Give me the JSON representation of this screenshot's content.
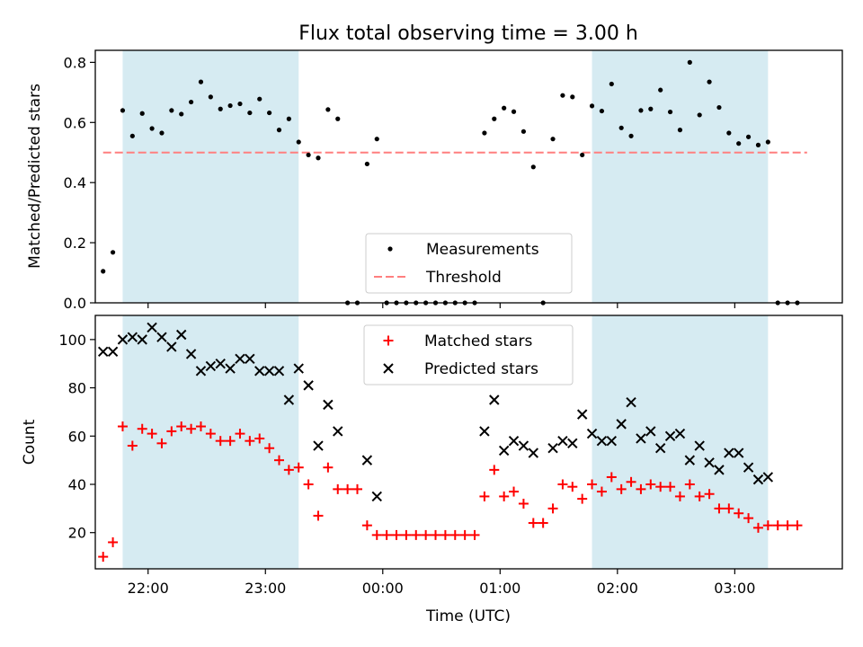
{
  "chart_data": [
    {
      "type": "scatter",
      "title": "Flux total observing time = 3.00 h",
      "ylabel": "Matched/Predicted stars",
      "xlabel": "",
      "ylim": [
        0,
        0.84
      ],
      "yticks": [
        "0.0",
        "0.2",
        "0.4",
        "0.6",
        "0.8"
      ],
      "xticks": [
        "22:00",
        "23:00",
        "00:00",
        "01:00",
        "02:00",
        "03:00"
      ],
      "xlim": [
        "21:33",
        "03:55"
      ],
      "shaded_intervals": [
        [
          "21:47",
          "23:17"
        ],
        [
          "01:47",
          "03:17"
        ]
      ],
      "threshold": {
        "value": 0.5,
        "from": "21:37",
        "to": "03:37",
        "color": "#ff7f7f"
      },
      "legend": {
        "position": "lower-center",
        "entries": [
          "Measurements",
          "Threshold"
        ]
      },
      "series": [
        {
          "name": "Measurements",
          "color": "#000000",
          "marker": "dot",
          "points": [
            [
              "21:37",
              0.105
            ],
            [
              "21:42",
              0.168
            ],
            [
              "21:47",
              0.64
            ],
            [
              "21:52",
              0.555
            ],
            [
              "21:57",
              0.63
            ],
            [
              "22:02",
              0.58
            ],
            [
              "22:07",
              0.565
            ],
            [
              "22:12",
              0.64
            ],
            [
              "22:17",
              0.628
            ],
            [
              "22:22",
              0.668
            ],
            [
              "22:27",
              0.735
            ],
            [
              "22:32",
              0.685
            ],
            [
              "22:37",
              0.645
            ],
            [
              "22:42",
              0.656
            ],
            [
              "22:47",
              0.662
            ],
            [
              "22:52",
              0.632
            ],
            [
              "22:57",
              0.678
            ],
            [
              "23:02",
              0.632
            ],
            [
              "23:07",
              0.575
            ],
            [
              "23:12",
              0.612
            ],
            [
              "23:17",
              0.535
            ],
            [
              "23:22",
              0.492
            ],
            [
              "23:27",
              0.482
            ],
            [
              "23:32",
              0.643
            ],
            [
              "23:37",
              0.612
            ],
            [
              "23:42",
              0.0
            ],
            [
              "23:47",
              0.0
            ],
            [
              "23:52",
              0.462
            ],
            [
              "23:57",
              0.545
            ],
            [
              "00:02",
              0.0
            ],
            [
              "00:07",
              0.0
            ],
            [
              "00:12",
              0.0
            ],
            [
              "00:17",
              0.0
            ],
            [
              "00:22",
              0.0
            ],
            [
              "00:27",
              0.0
            ],
            [
              "00:32",
              0.0
            ],
            [
              "00:37",
              0.0
            ],
            [
              "00:42",
              0.0
            ],
            [
              "00:47",
              0.0
            ],
            [
              "00:52",
              0.565
            ],
            [
              "00:57",
              0.612
            ],
            [
              "01:02",
              0.648
            ],
            [
              "01:07",
              0.636
            ],
            [
              "01:12",
              0.57
            ],
            [
              "01:17",
              0.452
            ],
            [
              "01:22",
              0.0
            ],
            [
              "01:27",
              0.545
            ],
            [
              "01:32",
              0.69
            ],
            [
              "01:37",
              0.685
            ],
            [
              "01:42",
              0.492
            ],
            [
              "01:47",
              0.655
            ],
            [
              "01:52",
              0.638
            ],
            [
              "01:57",
              0.728
            ],
            [
              "02:02",
              0.582
            ],
            [
              "02:07",
              0.555
            ],
            [
              "02:12",
              0.64
            ],
            [
              "02:17",
              0.645
            ],
            [
              "02:22",
              0.708
            ],
            [
              "02:27",
              0.635
            ],
            [
              "02:32",
              0.575
            ],
            [
              "02:37",
              0.8
            ],
            [
              "02:42",
              0.625
            ],
            [
              "02:47",
              0.735
            ],
            [
              "02:52",
              0.65
            ],
            [
              "02:57",
              0.565
            ],
            [
              "03:02",
              0.53
            ],
            [
              "03:07",
              0.552
            ],
            [
              "03:12",
              0.525
            ],
            [
              "03:17",
              0.535
            ],
            [
              "03:22",
              0.0
            ],
            [
              "03:27",
              0.0
            ],
            [
              "03:32",
              0.0
            ]
          ]
        }
      ]
    },
    {
      "type": "scatter",
      "title": "",
      "ylabel": "Count",
      "xlabel": "Time (UTC)",
      "ylim": [
        5,
        110
      ],
      "yticks": [
        "20",
        "40",
        "60",
        "80",
        "100"
      ],
      "xticks": [
        "22:00",
        "23:00",
        "00:00",
        "01:00",
        "02:00",
        "03:00"
      ],
      "xlim": [
        "21:33",
        "03:55"
      ],
      "shaded_intervals": [
        [
          "21:47",
          "23:17"
        ],
        [
          "01:47",
          "03:17"
        ]
      ],
      "legend": {
        "position": "upper-center",
        "entries": [
          "Matched stars",
          "Predicted stars"
        ]
      },
      "series": [
        {
          "name": "Matched stars",
          "color": "#ff0000",
          "marker": "plus",
          "points": [
            [
              "21:37",
              10
            ],
            [
              "21:42",
              16
            ],
            [
              "21:47",
              64
            ],
            [
              "21:52",
              56
            ],
            [
              "21:57",
              63
            ],
            [
              "22:02",
              61
            ],
            [
              "22:07",
              57
            ],
            [
              "22:12",
              62
            ],
            [
              "22:17",
              64
            ],
            [
              "22:22",
              63
            ],
            [
              "22:27",
              64
            ],
            [
              "22:32",
              61
            ],
            [
              "22:37",
              58
            ],
            [
              "22:42",
              58
            ],
            [
              "22:47",
              61
            ],
            [
              "22:52",
              58
            ],
            [
              "22:57",
              59
            ],
            [
              "23:02",
              55
            ],
            [
              "23:07",
              50
            ],
            [
              "23:12",
              46
            ],
            [
              "23:17",
              47
            ],
            [
              "23:22",
              40
            ],
            [
              "23:27",
              27
            ],
            [
              "23:32",
              47
            ],
            [
              "23:37",
              38
            ],
            [
              "23:42",
              38
            ],
            [
              "23:47",
              38
            ],
            [
              "23:52",
              23
            ],
            [
              "23:57",
              19
            ],
            [
              "00:02",
              19
            ],
            [
              "00:07",
              19
            ],
            [
              "00:12",
              19
            ],
            [
              "00:17",
              19
            ],
            [
              "00:22",
              19
            ],
            [
              "00:27",
              19
            ],
            [
              "00:32",
              19
            ],
            [
              "00:37",
              19
            ],
            [
              "00:42",
              19
            ],
            [
              "00:47",
              19
            ],
            [
              "00:52",
              35
            ],
            [
              "00:57",
              46
            ],
            [
              "01:02",
              35
            ],
            [
              "01:07",
              37
            ],
            [
              "01:12",
              32
            ],
            [
              "01:17",
              24
            ],
            [
              "01:22",
              24
            ],
            [
              "01:27",
              30
            ],
            [
              "01:32",
              40
            ],
            [
              "01:37",
              39
            ],
            [
              "01:42",
              34
            ],
            [
              "01:47",
              40
            ],
            [
              "01:52",
              37
            ],
            [
              "01:57",
              43
            ],
            [
              "02:02",
              38
            ],
            [
              "02:07",
              41
            ],
            [
              "02:12",
              38
            ],
            [
              "02:17",
              40
            ],
            [
              "02:22",
              39
            ],
            [
              "02:27",
              39
            ],
            [
              "02:32",
              35
            ],
            [
              "02:37",
              40
            ],
            [
              "02:42",
              35
            ],
            [
              "02:47",
              36
            ],
            [
              "02:52",
              30
            ],
            [
              "02:57",
              30
            ],
            [
              "03:02",
              28
            ],
            [
              "03:07",
              26
            ],
            [
              "03:12",
              22
            ],
            [
              "03:17",
              23
            ],
            [
              "03:22",
              23
            ],
            [
              "03:27",
              23
            ],
            [
              "03:32",
              23
            ]
          ]
        },
        {
          "name": "Predicted stars",
          "color": "#000000",
          "marker": "x",
          "points": [
            [
              "21:37",
              95
            ],
            [
              "21:42",
              95
            ],
            [
              "21:47",
              100
            ],
            [
              "21:52",
              101
            ],
            [
              "21:57",
              100
            ],
            [
              "22:02",
              105
            ],
            [
              "22:07",
              101
            ],
            [
              "22:12",
              97
            ],
            [
              "22:17",
              102
            ],
            [
              "22:22",
              94
            ],
            [
              "22:27",
              87
            ],
            [
              "22:32",
              89
            ],
            [
              "22:37",
              90
            ],
            [
              "22:42",
              88
            ],
            [
              "22:47",
              92
            ],
            [
              "22:52",
              92
            ],
            [
              "22:57",
              87
            ],
            [
              "23:02",
              87
            ],
            [
              "23:07",
              87
            ],
            [
              "23:12",
              75
            ],
            [
              "23:17",
              88
            ],
            [
              "23:22",
              81
            ],
            [
              "23:27",
              56
            ],
            [
              "23:32",
              73
            ],
            [
              "23:37",
              62
            ],
            [
              "23:52",
              50
            ],
            [
              "23:57",
              35
            ],
            [
              "00:52",
              62
            ],
            [
              "00:57",
              75
            ],
            [
              "01:02",
              54
            ],
            [
              "01:07",
              58
            ],
            [
              "01:12",
              56
            ],
            [
              "01:17",
              53
            ],
            [
              "01:27",
              55
            ],
            [
              "01:32",
              58
            ],
            [
              "01:37",
              57
            ],
            [
              "01:42",
              69
            ],
            [
              "01:47",
              61
            ],
            [
              "01:52",
              58
            ],
            [
              "01:57",
              58
            ],
            [
              "02:02",
              65
            ],
            [
              "02:07",
              74
            ],
            [
              "02:12",
              59
            ],
            [
              "02:17",
              62
            ],
            [
              "02:22",
              55
            ],
            [
              "02:27",
              60
            ],
            [
              "02:32",
              61
            ],
            [
              "02:37",
              50
            ],
            [
              "02:42",
              56
            ],
            [
              "02:47",
              49
            ],
            [
              "02:52",
              46
            ],
            [
              "02:57",
              53
            ],
            [
              "03:02",
              53
            ],
            [
              "03:07",
              47
            ],
            [
              "03:12",
              42
            ],
            [
              "03:17",
              43
            ]
          ]
        }
      ]
    }
  ]
}
